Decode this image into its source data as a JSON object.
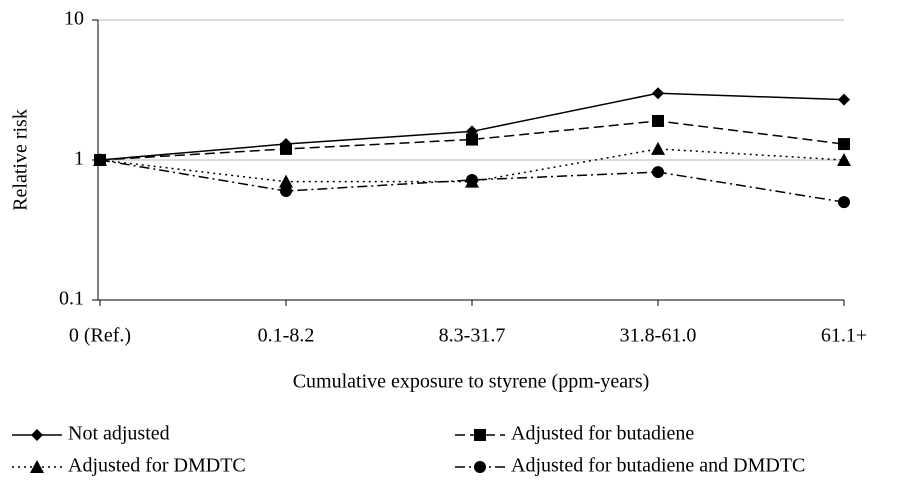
{
  "chart_data": {
    "type": "line",
    "x_label": "Cumulative exposure to styrene (ppm-years)",
    "y_label": "Relative risk",
    "categories": [
      "0 (Ref.)",
      "0.1-8.2",
      "8.3-31.7",
      "31.8-61.0",
      "61.1+"
    ],
    "series": [
      {
        "name": "Not adjusted",
        "color": "#000000",
        "dash": "solid",
        "marker": "diamond",
        "values": [
          1,
          1.3,
          1.6,
          3.0,
          2.7
        ]
      },
      {
        "name": "Adjusted for butadiene",
        "color": "#000000",
        "dash": "dashed",
        "marker": "square",
        "values": [
          1,
          1.2,
          1.4,
          1.9,
          1.3
        ]
      },
      {
        "name": "Adjusted for DMDTC",
        "color": "#000000",
        "dash": "dotted",
        "marker": "triangle",
        "values": [
          1,
          0.7,
          0.7,
          1.2,
          1.0
        ]
      },
      {
        "name": "Adjusted for butadiene and DMDTC",
        "color": "#000000",
        "dash": "dashdot",
        "marker": "circle",
        "values": [
          1,
          0.6,
          0.72,
          0.82,
          0.5
        ]
      }
    ],
    "ylim": [
      0.1,
      10
    ],
    "yticks": [
      0.1,
      1,
      10
    ],
    "log_y": true,
    "grid": true,
    "legend": "bottom"
  }
}
